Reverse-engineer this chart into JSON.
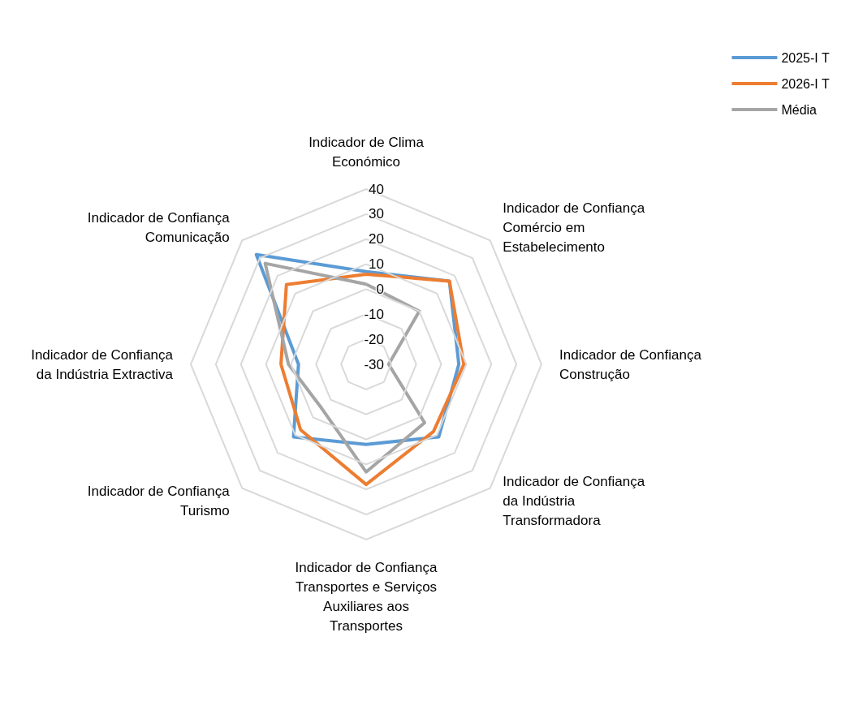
{
  "chart_data": {
    "type": "radar",
    "categories": [
      "Indicador de Clima Económico",
      "Indicador de Confiança Comércio em Estabelecimento",
      "Indicador de Confiança Construção",
      "Indicador de Confiança da Indústria Transformadora",
      "Indicador de Confiança Transportes e Serviços Auxiliares aos Transportes",
      "Indicador de Confiança Turismo",
      "Indicador de Confiança da Indústria Extractiva",
      "Indicador de Confiança Comunicação"
    ],
    "series": [
      {
        "name": "2025-I T",
        "color": "#5b9bd5",
        "values": [
          7,
          17,
          7,
          11,
          2,
          11,
          -3,
          32
        ]
      },
      {
        "name": "2026-I T",
        "color": "#ed7d31",
        "values": [
          6,
          17,
          9,
          8,
          18,
          7,
          4,
          15
        ]
      },
      {
        "name": "Média",
        "color": "#a5a5a5",
        "values": [
          2,
          0,
          -21,
          3,
          13,
          -5,
          1,
          27
        ]
      }
    ],
    "ylim": [
      -30,
      40
    ],
    "yticks": [
      -30,
      -20,
      -10,
      0,
      10,
      20,
      30,
      40
    ],
    "grid": true,
    "legend": "top right",
    "marker": "none",
    "line_style": "solid"
  }
}
